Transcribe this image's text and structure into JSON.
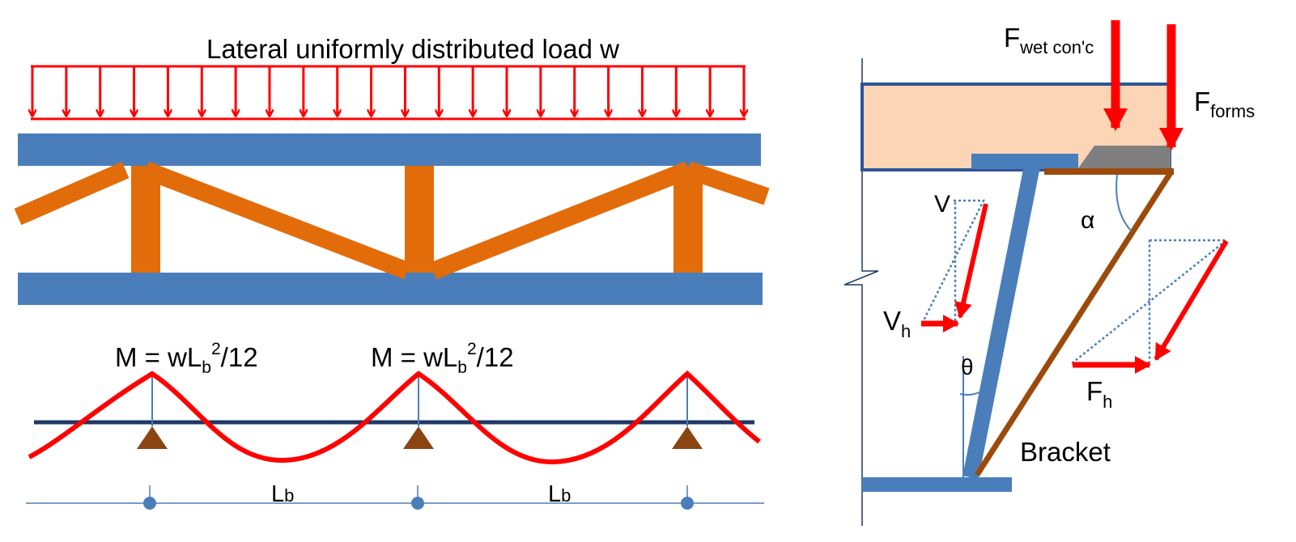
{
  "colors": {
    "load": "#ff0000",
    "chord": "#4a7ebb",
    "web": "#e36c0a",
    "moment": "#ff0000",
    "axis": "#1f3864",
    "support": "#8b4513",
    "dim": "#4a7ebb",
    "slab": "#fbd5b5",
    "slab_edge": "#2e5597",
    "bracket_brace": "#9c4a0a",
    "bracket_post": "#4a7ebb",
    "form": "#7f7f7f",
    "dotted": "#4a7ebb"
  },
  "left_diagram": {
    "load_label": "Lateral uniformly distributed load w",
    "moment_label_1": {
      "main": "M = wL",
      "sub": "b",
      "sup": "2",
      "tail": "/12"
    },
    "moment_label_2": {
      "main": "M = wL",
      "sub": "b",
      "sup": "2",
      "tail": "/12"
    },
    "span_label_1": {
      "main": "L",
      "sub": "b"
    },
    "span_label_2": {
      "main": "L",
      "sub": "b"
    }
  },
  "right_diagram": {
    "f_wet": {
      "main": "F",
      "sub": "wet con'c"
    },
    "f_forms": {
      "main": "F",
      "sub": "forms"
    },
    "alpha": "α",
    "theta": "θ",
    "v": "V",
    "v_h": {
      "main": "V",
      "sub": "h"
    },
    "f_h": {
      "main": "F",
      "sub": "h"
    },
    "bracket": "Bracket"
  }
}
